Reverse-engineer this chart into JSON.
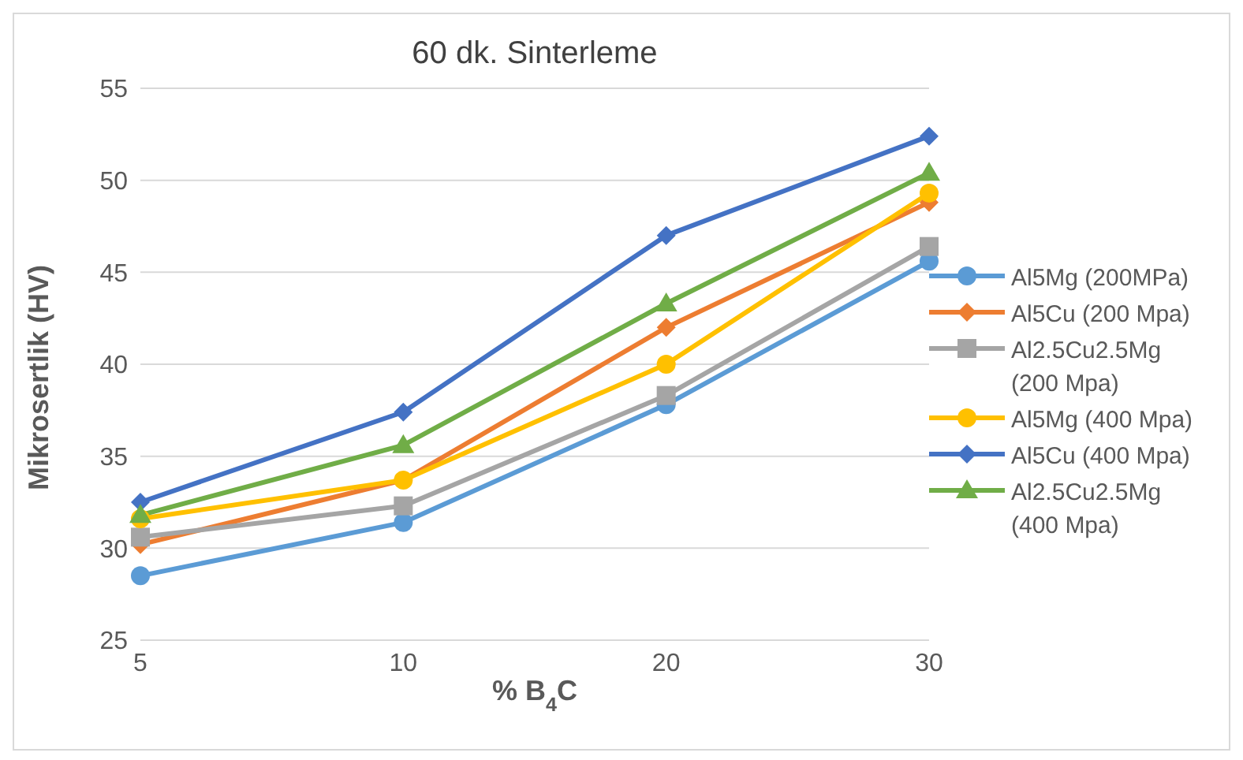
{
  "chart_data": {
    "type": "line",
    "title": "60 dk. Sinterleme",
    "xlabel": "% B$_{4}$C",
    "ylabel": "Mikrosertlik (HV)",
    "categories": [
      "5",
      "10",
      "20",
      "30"
    ],
    "series": [
      {
        "name": "Al5Mg (200MPa)",
        "color": "#5b9bd5",
        "marker": "circle",
        "values": [
          28.5,
          31.4,
          37.8,
          45.6
        ]
      },
      {
        "name": "Al5Cu (200 Mpa)",
        "color": "#ed7d31",
        "marker": "diamond",
        "values": [
          30.2,
          33.7,
          42.0,
          48.8
        ]
      },
      {
        "name": "Al2.5Cu2.5Mg (200 Mpa)",
        "color": "#a5a5a5",
        "marker": "square",
        "values": [
          30.6,
          32.3,
          38.3,
          46.4
        ]
      },
      {
        "name": "Al5Mg (400 Mpa)",
        "color": "#ffc000",
        "marker": "circle",
        "values": [
          31.6,
          33.7,
          40.0,
          49.3
        ]
      },
      {
        "name": "Al5Cu (400 Mpa)",
        "color": "#4472c4",
        "marker": "diamond",
        "values": [
          32.5,
          37.4,
          47.0,
          52.4
        ]
      },
      {
        "name": "Al2.5Cu2.5Mg (400 Mpa)",
        "color": "#70ad47",
        "marker": "triangle",
        "values": [
          31.8,
          35.6,
          43.3,
          50.4
        ]
      }
    ],
    "ylim": [
      25,
      55
    ],
    "yticks": [
      25,
      30,
      35,
      40,
      45,
      50,
      55
    ],
    "grid": "y",
    "legend": "right"
  }
}
